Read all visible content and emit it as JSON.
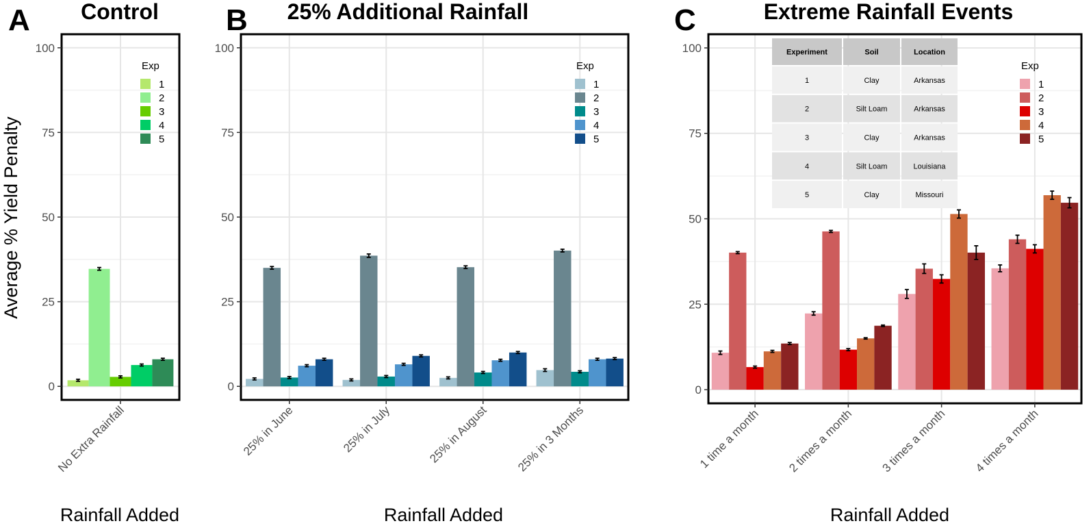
{
  "y_axis_label": "Average % Yield Penalty",
  "x_axis_label": "Rainfall Added",
  "experiment_table": {
    "headers": [
      "Experiment",
      "Soil",
      "Location"
    ],
    "rows": [
      [
        "1",
        "Clay",
        "Arkansas"
      ],
      [
        "2",
        "Silt Loam",
        "Arkansas"
      ],
      [
        "3",
        "Clay",
        "Arkansas"
      ],
      [
        "4",
        "Silt Loam",
        "Louisiana"
      ],
      [
        "5",
        "Clay",
        "Missouri"
      ]
    ]
  },
  "chart_data": [
    {
      "type": "bar",
      "panel": "A",
      "title": "Control",
      "xlabel": "Rainfall Added",
      "ylabel": "Average % Yield Penalty",
      "ylim": [
        0,
        100
      ],
      "yticks": [
        0,
        25,
        50,
        75,
        100
      ],
      "legend_title": "Exp",
      "legend_position": "top-right",
      "categories": [
        "No Extra Rainfall"
      ],
      "series": [
        {
          "name": "1",
          "color": "#b5e86c",
          "values": [
            1.8
          ],
          "errors": [
            0.3
          ]
        },
        {
          "name": "2",
          "color": "#90ee90",
          "values": [
            34.7
          ],
          "errors": [
            0.4
          ]
        },
        {
          "name": "3",
          "color": "#66cd00",
          "values": [
            2.8
          ],
          "errors": [
            0.3
          ]
        },
        {
          "name": "4",
          "color": "#00cd66",
          "values": [
            6.3
          ],
          "errors": [
            0.3
          ]
        },
        {
          "name": "5",
          "color": "#2e8b57",
          "values": [
            8.0
          ],
          "errors": [
            0.3
          ]
        }
      ]
    },
    {
      "type": "bar",
      "panel": "B",
      "title": "25% Additional Rainfall",
      "xlabel": "Rainfall Added",
      "ylim": [
        0,
        100
      ],
      "yticks": [
        0,
        25,
        50,
        75,
        100
      ],
      "legend_title": "Exp",
      "legend_position": "top-right",
      "categories": [
        "25% in June",
        "25% in July",
        "25% in August",
        "25% in 3 Months"
      ],
      "series": [
        {
          "name": "1",
          "color": "#9fc1cf",
          "values": [
            2.2,
            1.9,
            2.5,
            4.8
          ],
          "errors": [
            0.3,
            0.3,
            0.3,
            0.4
          ]
        },
        {
          "name": "2",
          "color": "#6a868f",
          "values": [
            35.0,
            38.6,
            35.2,
            40.1
          ],
          "errors": [
            0.4,
            0.5,
            0.4,
            0.4
          ]
        },
        {
          "name": "3",
          "color": "#008b8b",
          "values": [
            2.6,
            2.9,
            4.1,
            4.3
          ],
          "errors": [
            0.3,
            0.3,
            0.3,
            0.3
          ]
        },
        {
          "name": "4",
          "color": "#4f94cd",
          "values": [
            6.1,
            6.5,
            7.7,
            8.0
          ],
          "errors": [
            0.3,
            0.3,
            0.3,
            0.3
          ]
        },
        {
          "name": "5",
          "color": "#124e8a",
          "values": [
            8.0,
            9.0,
            10.0,
            8.2
          ],
          "errors": [
            0.3,
            0.3,
            0.3,
            0.3
          ]
        }
      ]
    },
    {
      "type": "bar",
      "panel": "C",
      "title": "Extreme Rainfall Events",
      "xlabel": "Rainfall Added",
      "ylim": [
        0,
        100
      ],
      "yticks": [
        0,
        25,
        50,
        75,
        100
      ],
      "legend_title": "Exp",
      "legend_position": "top-right",
      "categories": [
        "1 time a month",
        "2 times a month",
        "3 times a month",
        "4 times a month"
      ],
      "series": [
        {
          "name": "1",
          "color": "#eea2ad",
          "values": [
            10.8,
            22.3,
            28.0,
            35.5
          ],
          "errors": [
            0.5,
            0.5,
            1.3,
            1.0
          ]
        },
        {
          "name": "2",
          "color": "#cd5c5c",
          "values": [
            40.1,
            46.3,
            35.4,
            44.0
          ],
          "errors": [
            0.3,
            0.3,
            1.4,
            1.2
          ]
        },
        {
          "name": "3",
          "color": "#dd0000",
          "values": [
            6.6,
            11.7,
            32.4,
            41.2
          ],
          "errors": [
            0.3,
            0.3,
            1.2,
            1.2
          ]
        },
        {
          "name": "4",
          "color": "#cd6a3a",
          "values": [
            11.2,
            15.0,
            51.4,
            56.9
          ],
          "errors": [
            0.3,
            0.2,
            1.2,
            1.2
          ]
        },
        {
          "name": "5",
          "color": "#8b2323",
          "values": [
            13.5,
            18.7,
            40.1,
            54.7
          ],
          "errors": [
            0.3,
            0.2,
            2.0,
            1.5
          ]
        }
      ]
    }
  ]
}
